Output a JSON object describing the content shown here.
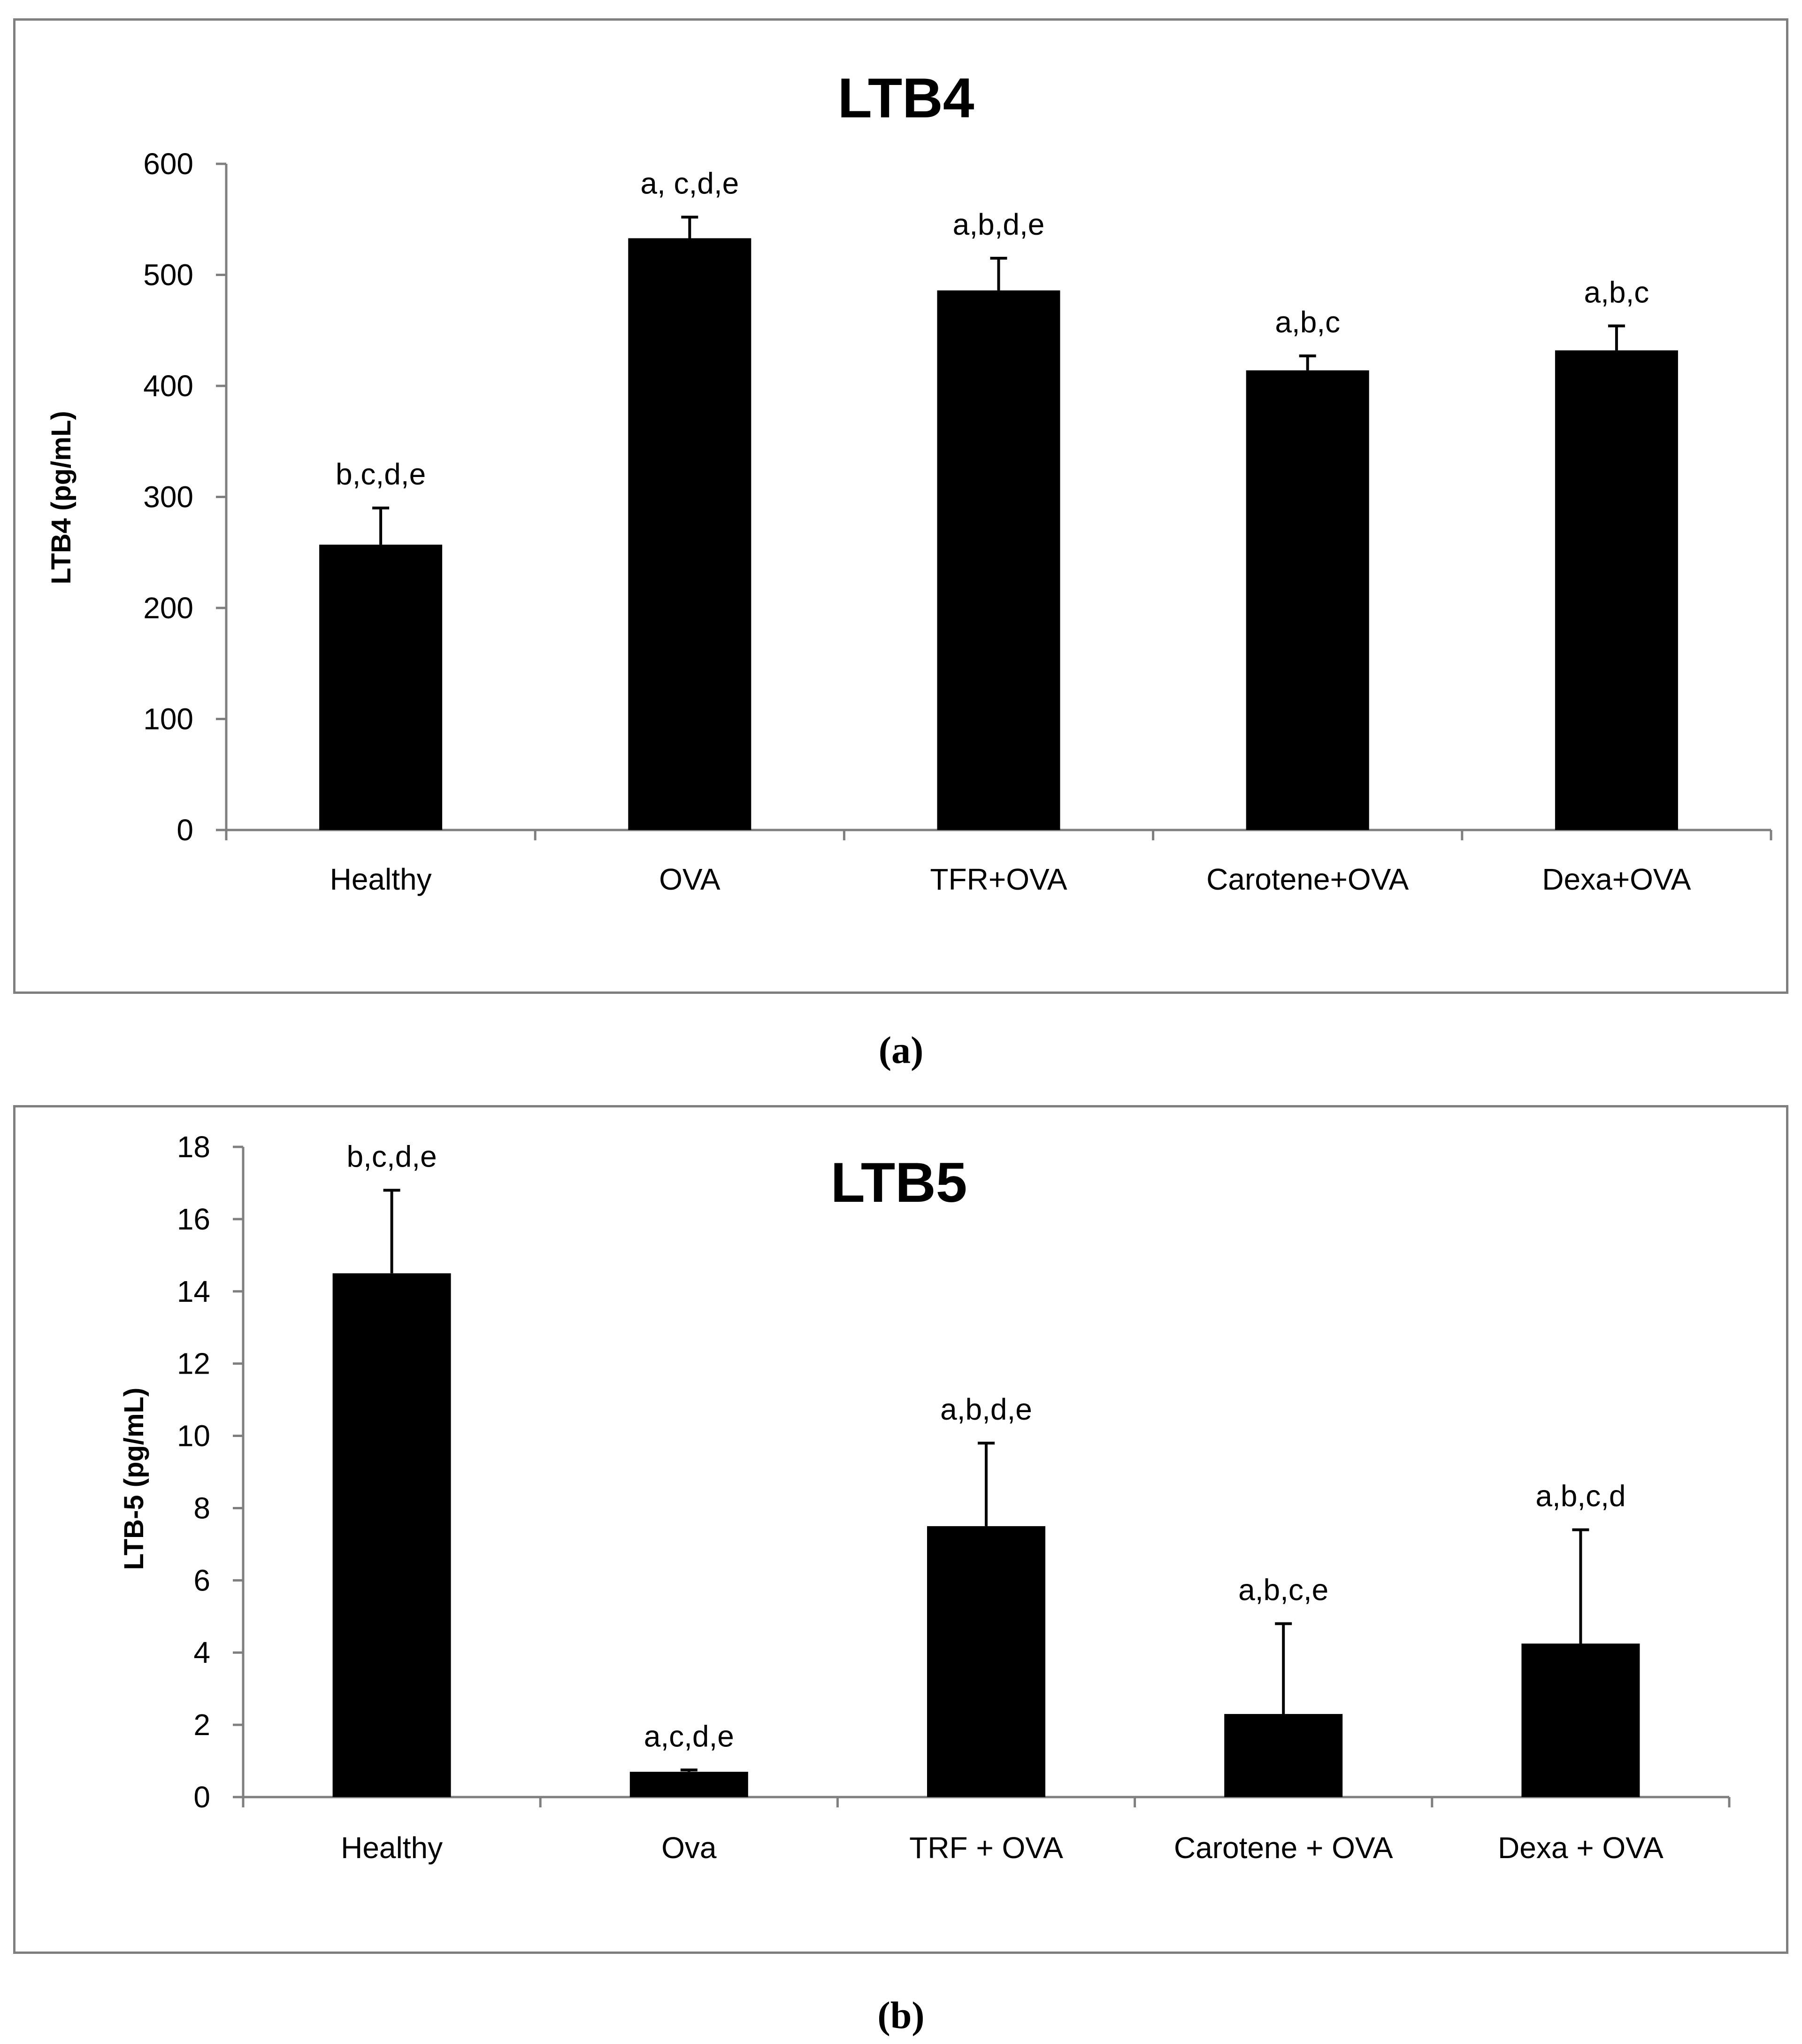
{
  "figure": {
    "caption_a": "(a)",
    "caption_b": "(b)"
  },
  "chart_data": [
    {
      "type": "bar",
      "title": "LTB4",
      "xlabel": "",
      "ylabel": "LTB4  (pg/mL)",
      "categories": [
        "Healthy",
        "OVA",
        "TFR+OVA",
        "Carotene+OVA",
        "Dexa+OVA"
      ],
      "values": [
        257,
        533,
        486,
        414,
        432
      ],
      "errors": [
        33,
        19,
        29,
        13,
        22
      ],
      "annotations": [
        "b,c,d,e",
        "a, c,d,e",
        "a,b,d,e",
        "a,b,c",
        "a,b,c"
      ],
      "ylim": [
        0,
        600
      ],
      "yticks": [
        0,
        100,
        200,
        300,
        400,
        500,
        600
      ],
      "grid": false,
      "bar_color": "#000000"
    },
    {
      "type": "bar",
      "title": "LTB5",
      "xlabel": "",
      "ylabel": "LTB-5  (pg/mL)",
      "categories": [
        "Healthy",
        "Ova",
        "TRF + OVA",
        "Carotene + OVA",
        "Dexa + OVA"
      ],
      "values": [
        14.5,
        0.7,
        7.5,
        2.3,
        4.25
      ],
      "errors": [
        2.3,
        0.05,
        2.3,
        2.5,
        3.15
      ],
      "annotations": [
        "b,c,d,e",
        "a,c,d,e",
        "a,b,d,e",
        "a,b,c,e",
        "a,b,c,d"
      ],
      "ylim": [
        0,
        18
      ],
      "yticks": [
        0,
        2,
        4,
        6,
        8,
        10,
        12,
        14,
        16,
        18
      ],
      "grid": false,
      "bar_color": "#000000"
    }
  ]
}
